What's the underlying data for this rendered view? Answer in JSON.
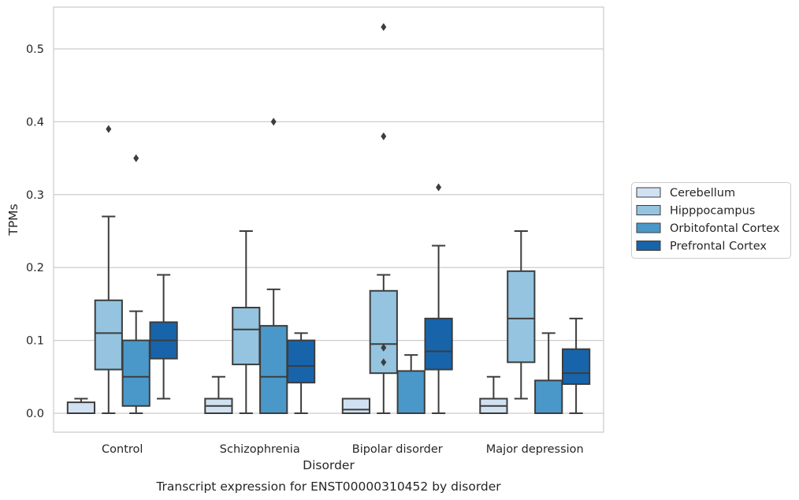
{
  "chart_data": {
    "type": "boxplot",
    "title": "",
    "caption": "Transcript expression for ENST00000310452 by disorder",
    "xlabel": "Disorder",
    "ylabel": "TPMs",
    "ylim": [
      -0.026,
      0.558
    ],
    "yticks": [
      0.0,
      0.1,
      0.2,
      0.3,
      0.4,
      0.5
    ],
    "ytick_labels": [
      "0.0",
      "0.1",
      "0.2",
      "0.3",
      "0.4",
      "0.5"
    ],
    "grid": "horizontal",
    "legend_position": "right",
    "categories": [
      "Control",
      "Schizophrenia",
      "Bipolar disorder",
      "Major depression"
    ],
    "series": [
      {
        "name": "Cerebellum",
        "color": "#d0e1f2",
        "boxes": [
          {
            "min": 0.0,
            "q1": 0.0,
            "median": 0.0,
            "q3": 0.015,
            "max": 0.02,
            "outliers": []
          },
          {
            "min": 0.0,
            "q1": 0.0,
            "median": 0.01,
            "q3": 0.02,
            "max": 0.05,
            "outliers": []
          },
          {
            "min": 0.0,
            "q1": 0.0,
            "median": 0.005,
            "q3": 0.02,
            "max": 0.02,
            "outliers": []
          },
          {
            "min": 0.0,
            "q1": 0.0,
            "median": 0.01,
            "q3": 0.02,
            "max": 0.05,
            "outliers": []
          }
        ]
      },
      {
        "name": "Hipppocampus",
        "color": "#94c4df",
        "boxes": [
          {
            "min": 0.0,
            "q1": 0.06,
            "median": 0.11,
            "q3": 0.155,
            "max": 0.27,
            "outliers": [
              0.39
            ]
          },
          {
            "min": 0.0,
            "q1": 0.067,
            "median": 0.115,
            "q3": 0.145,
            "max": 0.25,
            "outliers": []
          },
          {
            "min": 0.0,
            "q1": 0.055,
            "median": 0.095,
            "q3": 0.168,
            "max": 0.19,
            "outliers": [
              0.09,
              0.07,
              0.38,
              0.53
            ]
          },
          {
            "min": 0.02,
            "q1": 0.07,
            "median": 0.13,
            "q3": 0.195,
            "max": 0.25,
            "outliers": []
          }
        ]
      },
      {
        "name": "Orbitofontal Cortex",
        "color": "#4a98c9",
        "boxes": [
          {
            "min": 0.0,
            "q1": 0.01,
            "median": 0.05,
            "q3": 0.1,
            "max": 0.14,
            "outliers": [
              0.35
            ]
          },
          {
            "min": 0.0,
            "q1": 0.0,
            "median": 0.05,
            "q3": 0.12,
            "max": 0.17,
            "outliers": [
              0.4
            ]
          },
          {
            "min": 0.0,
            "q1": 0.0,
            "median": 0.0,
            "q3": 0.058,
            "max": 0.08,
            "outliers": []
          },
          {
            "min": 0.0,
            "q1": 0.0,
            "median": 0.0,
            "q3": 0.045,
            "max": 0.11,
            "outliers": []
          }
        ]
      },
      {
        "name": "Prefrontal Cortex",
        "color": "#1764ab",
        "boxes": [
          {
            "min": 0.02,
            "q1": 0.075,
            "median": 0.1,
            "q3": 0.125,
            "max": 0.19,
            "outliers": []
          },
          {
            "min": 0.0,
            "q1": 0.042,
            "median": 0.065,
            "q3": 0.1,
            "max": 0.11,
            "outliers": []
          },
          {
            "min": 0.0,
            "q1": 0.06,
            "median": 0.085,
            "q3": 0.13,
            "max": 0.23,
            "outliers": [
              0.31
            ]
          },
          {
            "min": 0.0,
            "q1": 0.04,
            "median": 0.055,
            "q3": 0.088,
            "max": 0.13,
            "outliers": []
          }
        ]
      }
    ]
  }
}
